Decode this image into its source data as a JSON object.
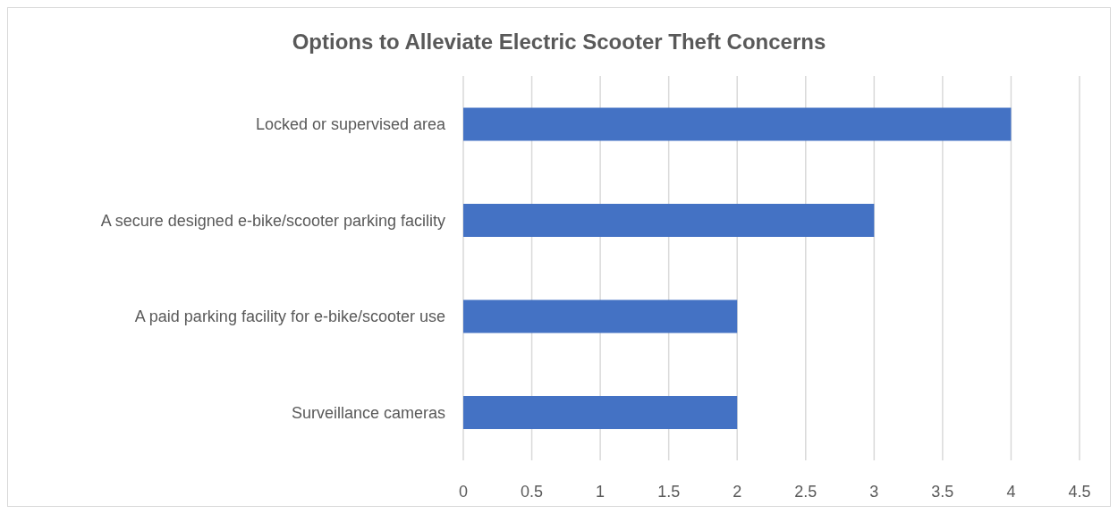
{
  "chart_data": {
    "type": "bar",
    "title": "Options to Alleviate Electric Scooter Theft Concerns",
    "orientation": "horizontal",
    "categories": [
      "Locked or supervised area",
      "A secure designed e-bike/scooter parking facility",
      "A paid parking facility for e-bike/scooter use",
      "Surveillance cameras"
    ],
    "values": [
      4,
      3,
      2,
      2
    ],
    "color": "#4472c4",
    "xlim": [
      0,
      4.5
    ],
    "xticks": [
      0,
      0.5,
      1,
      1.5,
      2,
      2.5,
      3,
      3.5,
      4,
      4.5
    ],
    "grid": "x"
  }
}
